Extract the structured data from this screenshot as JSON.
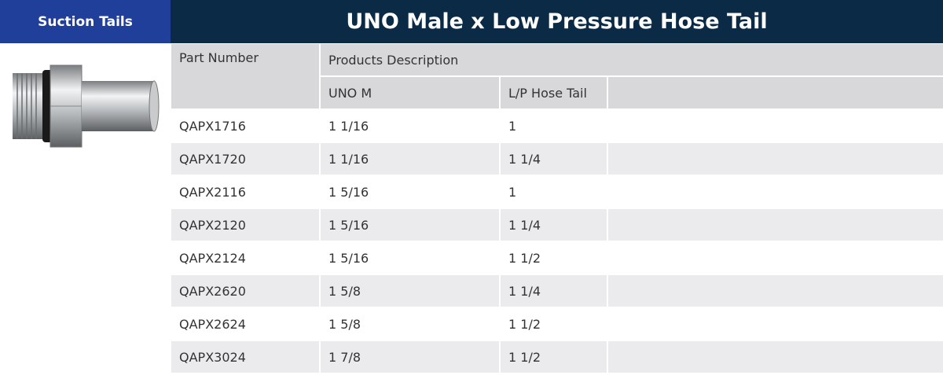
{
  "header": {
    "badge": "Suction Tails",
    "title": "UNO Male x Low Pressure Hose Tail"
  },
  "table": {
    "part_header": "Part Number",
    "group_header": "Products Description",
    "sub_headers": [
      "UNO M",
      "L/P Hose Tail"
    ],
    "rows": [
      [
        "QAPX1716",
        "1 1/16",
        "1"
      ],
      [
        "QAPX1720",
        "1 1/16",
        "1 1/4"
      ],
      [
        "QAPX2116",
        "1 5/16",
        "1"
      ],
      [
        "QAPX2120",
        "1 5/16",
        "1 1/4"
      ],
      [
        "QAPX2124",
        "1 5/16",
        "1 1/2"
      ],
      [
        "QAPX2620",
        "1 5/8",
        "1 1/4"
      ],
      [
        "QAPX2624",
        "1 5/8",
        "1 1/2"
      ],
      [
        "QAPX3024",
        "1 7/8",
        "1 1/2"
      ]
    ]
  }
}
